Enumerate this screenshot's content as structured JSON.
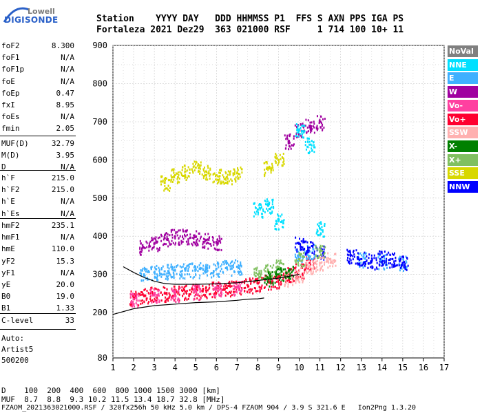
{
  "logo": {
    "brand": "Lowell",
    "name": "DIGISONDE"
  },
  "header": {
    "line1": "Station    YYYY DAY   DDD HHMMSS P1  FFS S AXN PPS IGA PS",
    "line2": "Fortaleza 2021 Dez29  363 021000 RSF     1 714 100 10+ 11"
  },
  "params_group1": [
    {
      "k": "foF2",
      "v": "8.300"
    },
    {
      "k": "foF1",
      "v": "N/A"
    },
    {
      "k": "foF1p",
      "v": "N/A"
    },
    {
      "k": "foE",
      "v": "N/A"
    },
    {
      "k": "foEp",
      "v": "0.47"
    },
    {
      "k": "fxI",
      "v": "8.95"
    },
    {
      "k": "foEs",
      "v": "N/A"
    },
    {
      "k": "fmin",
      "v": "2.05"
    }
  ],
  "params_group2": [
    {
      "k": "MUF(D)",
      "v": "32.79"
    },
    {
      "k": "M(D)",
      "v": "3.95"
    },
    {
      "k": "D",
      "v": "N/A"
    }
  ],
  "params_group3": [
    {
      "k": "h`F",
      "v": "215.0"
    },
    {
      "k": "h`F2",
      "v": "215.0"
    },
    {
      "k": "h`E",
      "v": "N/A"
    },
    {
      "k": "h`Es",
      "v": "N/A"
    }
  ],
  "params_group4": [
    {
      "k": "hmF2",
      "v": "235.1"
    },
    {
      "k": "hmF1",
      "v": "N/A"
    },
    {
      "k": "hmE",
      "v": "110.0"
    },
    {
      "k": "yF2",
      "v": "15.3"
    },
    {
      "k": "yF1",
      "v": "N/A"
    },
    {
      "k": "yE",
      "v": "20.0"
    },
    {
      "k": "B0",
      "v": "19.0"
    },
    {
      "k": "B1",
      "v": "1.33"
    }
  ],
  "clevel": {
    "k": "C-level",
    "v": "33"
  },
  "auto": {
    "line1": "Auto:",
    "line2": "Artist5",
    "line3": "500200"
  },
  "footer": {
    "line1": "D    100  200  400  600  800 1000 1500 3000 [km]",
    "line2": "MUF  8.7  8.8  9.3 10.2 11.5 13.4 18.7 32.8 [MHz]",
    "line3": "FZAOM_2021363021000.RSF / 320fx256h 50 kHz 5.0 km / DPS-4 FZAOM 904 / 3.9 S 321.6 E   Ion2Png 1.3.20"
  },
  "legend": [
    {
      "label": "NoVal",
      "color": "#808080"
    },
    {
      "label": "NNE",
      "color": "#00e0ff"
    },
    {
      "label": "E",
      "color": "#3fb0ff"
    },
    {
      "label": "W",
      "color": "#a000a0"
    },
    {
      "label": "Vo-",
      "color": "#ff40a0"
    },
    {
      "label": "Vo+",
      "color": "#ff0030"
    },
    {
      "label": "SSW",
      "color": "#ffb0b0"
    },
    {
      "label": "X-",
      "color": "#008000"
    },
    {
      "label": "X+",
      "color": "#80c060"
    },
    {
      "label": "SSE",
      "color": "#d8d800"
    },
    {
      "label": "NNW",
      "color": "#0000ff"
    }
  ],
  "chart_data": {
    "type": "scatter",
    "xlim": [
      1,
      17
    ],
    "ylim": [
      80,
      900
    ],
    "x_ticks": [
      1,
      2,
      3,
      4,
      5,
      6,
      7,
      8,
      9,
      10,
      11,
      12,
      13,
      14,
      15,
      16,
      17
    ],
    "y_ticks": [
      80,
      200,
      300,
      400,
      500,
      600,
      700,
      800,
      900
    ],
    "grid": true,
    "series": [
      {
        "name": "Vo+",
        "color": "#ff0030",
        "points": [
          [
            2.0,
            240
          ],
          [
            2.5,
            245
          ],
          [
            3.0,
            248
          ],
          [
            3.5,
            250
          ],
          [
            4.0,
            252
          ],
          [
            4.5,
            255
          ],
          [
            5.0,
            256
          ],
          [
            5.5,
            258
          ],
          [
            6.0,
            262
          ],
          [
            6.5,
            264
          ],
          [
            7.0,
            268
          ],
          [
            7.5,
            272
          ],
          [
            8.0,
            276
          ],
          [
            8.5,
            280
          ],
          [
            9.0,
            285
          ],
          [
            9.5,
            300
          ],
          [
            10.0,
            310
          ],
          [
            10.5,
            330
          ]
        ]
      },
      {
        "name": "E",
        "color": "#3fb0ff",
        "points": [
          [
            2.5,
            300
          ],
          [
            3.0,
            305
          ],
          [
            3.5,
            308
          ],
          [
            4.0,
            310
          ],
          [
            4.5,
            310
          ],
          [
            5.0,
            312
          ],
          [
            5.5,
            312
          ],
          [
            6.0,
            315
          ],
          [
            6.5,
            318
          ],
          [
            7.0,
            320
          ],
          [
            10.0,
            350
          ],
          [
            10.5,
            360
          ],
          [
            13.0,
            340
          ],
          [
            14.0,
            335
          ],
          [
            15.0,
            330
          ]
        ]
      },
      {
        "name": "W",
        "color": "#a000a0",
        "points": [
          [
            2.5,
            370
          ],
          [
            3.0,
            380
          ],
          [
            3.5,
            395
          ],
          [
            4.0,
            400
          ],
          [
            4.5,
            400
          ],
          [
            5.0,
            398
          ],
          [
            5.5,
            390
          ],
          [
            6.0,
            385
          ],
          [
            9.5,
            650
          ],
          [
            10.0,
            680
          ],
          [
            10.5,
            690
          ],
          [
            11.0,
            700
          ]
        ]
      },
      {
        "name": "SSE",
        "color": "#d8d800",
        "points": [
          [
            3.5,
            540
          ],
          [
            4.0,
            560
          ],
          [
            4.5,
            570
          ],
          [
            5.0,
            580
          ],
          [
            5.5,
            570
          ],
          [
            6.0,
            560
          ],
          [
            6.5,
            555
          ],
          [
            7.0,
            565
          ],
          [
            8.5,
            580
          ],
          [
            9.0,
            600
          ]
        ]
      },
      {
        "name": "NNW",
        "color": "#0000ff",
        "points": [
          [
            10.0,
            380
          ],
          [
            10.5,
            370
          ],
          [
            11.0,
            360
          ],
          [
            12.5,
            350
          ],
          [
            13.0,
            340
          ],
          [
            13.5,
            335
          ],
          [
            14.0,
            345
          ],
          [
            14.5,
            340
          ],
          [
            15.0,
            330
          ]
        ]
      },
      {
        "name": "NNE",
        "color": "#00e0ff",
        "points": [
          [
            8.0,
            470
          ],
          [
            8.5,
            480
          ],
          [
            9.0,
            440
          ],
          [
            10.0,
            680
          ],
          [
            10.5,
            640
          ],
          [
            11.0,
            420
          ]
        ]
      },
      {
        "name": "SSW",
        "color": "#ffb0b0",
        "points": [
          [
            9.5,
            290
          ],
          [
            10.0,
            300
          ],
          [
            10.5,
            320
          ],
          [
            11.0,
            330
          ],
          [
            11.5,
            340
          ]
        ]
      },
      {
        "name": "X+",
        "color": "#80c060",
        "points": [
          [
            8.0,
            300
          ],
          [
            8.5,
            310
          ],
          [
            9.0,
            320
          ],
          [
            10.0,
            340
          ],
          [
            11.0,
            360
          ]
        ]
      },
      {
        "name": "X-",
        "color": "#008000",
        "points": [
          [
            8.5,
            290
          ],
          [
            9.0,
            300
          ],
          [
            9.5,
            310
          ]
        ]
      },
      {
        "name": "Vo-",
        "color": "#ff40a0",
        "points": [
          [
            2.0,
            235
          ],
          [
            3.0,
            245
          ],
          [
            4.0,
            250
          ],
          [
            5.0,
            255
          ],
          [
            6.0,
            260
          ],
          [
            7.0,
            265
          ]
        ]
      }
    ],
    "profile_lines": [
      {
        "points": [
          [
            1.0,
            195
          ],
          [
            2.0,
            210
          ],
          [
            3.0,
            218
          ],
          [
            4.0,
            222
          ],
          [
            5.0,
            226
          ],
          [
            6.0,
            228
          ],
          [
            7.0,
            232
          ],
          [
            7.5,
            235
          ],
          [
            8.0,
            236
          ],
          [
            8.3,
            238
          ]
        ]
      },
      {
        "points": [
          [
            1.5,
            320
          ],
          [
            2.0,
            305
          ],
          [
            2.5,
            292
          ],
          [
            3.0,
            282
          ],
          [
            3.5,
            276
          ],
          [
            4.0,
            274
          ],
          [
            5.0,
            274
          ],
          [
            6.0,
            275
          ],
          [
            7.0,
            278
          ],
          [
            8.0,
            284
          ],
          [
            9.0,
            290
          ],
          [
            10.0,
            300
          ]
        ]
      }
    ]
  }
}
